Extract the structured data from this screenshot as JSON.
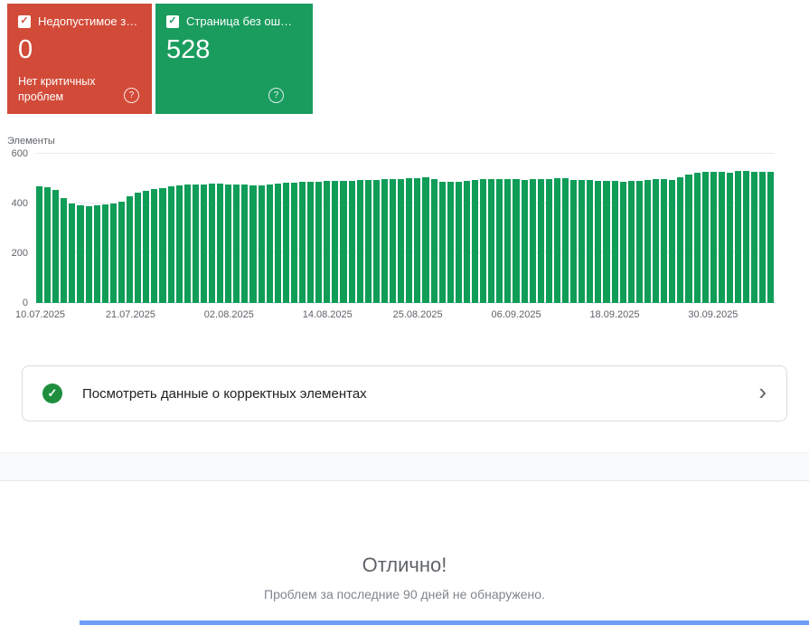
{
  "cards": {
    "error": {
      "label": "Недопустимое з…",
      "value": "0",
      "subtitle": "Нет критичных проблем",
      "bg": "#d24b38"
    },
    "valid": {
      "label": "Страница без ош…",
      "value": "528",
      "bg": "#1a9c5f"
    }
  },
  "icons": {
    "check": "✓",
    "help": "?",
    "chevron": "›"
  },
  "colors": {
    "valid_circle": "#1e8e3e",
    "bottom_strip": "#6f9ef7"
  },
  "chart_data": {
    "type": "bar",
    "title": "",
    "ylabel": "Элементы",
    "xlabel": "",
    "ylim": [
      0,
      600
    ],
    "yticks": [
      0,
      200,
      400,
      600
    ],
    "grid": true,
    "legend": "none",
    "bar_color": "#0f9d58",
    "x_ticks": [
      {
        "index": 0,
        "label": "10.07.2025"
      },
      {
        "index": 11,
        "label": "21.07.2025"
      },
      {
        "index": 23,
        "label": "02.08.2025"
      },
      {
        "index": 35,
        "label": "14.08.2025"
      },
      {
        "index": 46,
        "label": "25.08.2025"
      },
      {
        "index": 58,
        "label": "06.09.2025"
      },
      {
        "index": 70,
        "label": "18.09.2025"
      },
      {
        "index": 82,
        "label": "30.09.2025"
      }
    ],
    "values": [
      470,
      466,
      454,
      422,
      400,
      394,
      390,
      392,
      396,
      400,
      406,
      428,
      444,
      452,
      458,
      463,
      468,
      472,
      475,
      478,
      478,
      480,
      480,
      478,
      476,
      475,
      474,
      474,
      478,
      480,
      482,
      484,
      486,
      488,
      488,
      490,
      490,
      492,
      492,
      494,
      495,
      496,
      498,
      500,
      500,
      502,
      503,
      505,
      500,
      488,
      486,
      488,
      492,
      495,
      497,
      498,
      498,
      499,
      500,
      495,
      497,
      499,
      500,
      501,
      502,
      495,
      493,
      495,
      490,
      492,
      490,
      488,
      490,
      492,
      495,
      498,
      500,
      496,
      506,
      516,
      524,
      528,
      527,
      526,
      524,
      530,
      532,
      529,
      527,
      528
    ]
  },
  "view_data_row": {
    "label": "Посмотреть данные о корректных элементах"
  },
  "summary": {
    "heading": "Отлично!",
    "subtext": "Проблем за последние 90 дней не обнаружено."
  }
}
